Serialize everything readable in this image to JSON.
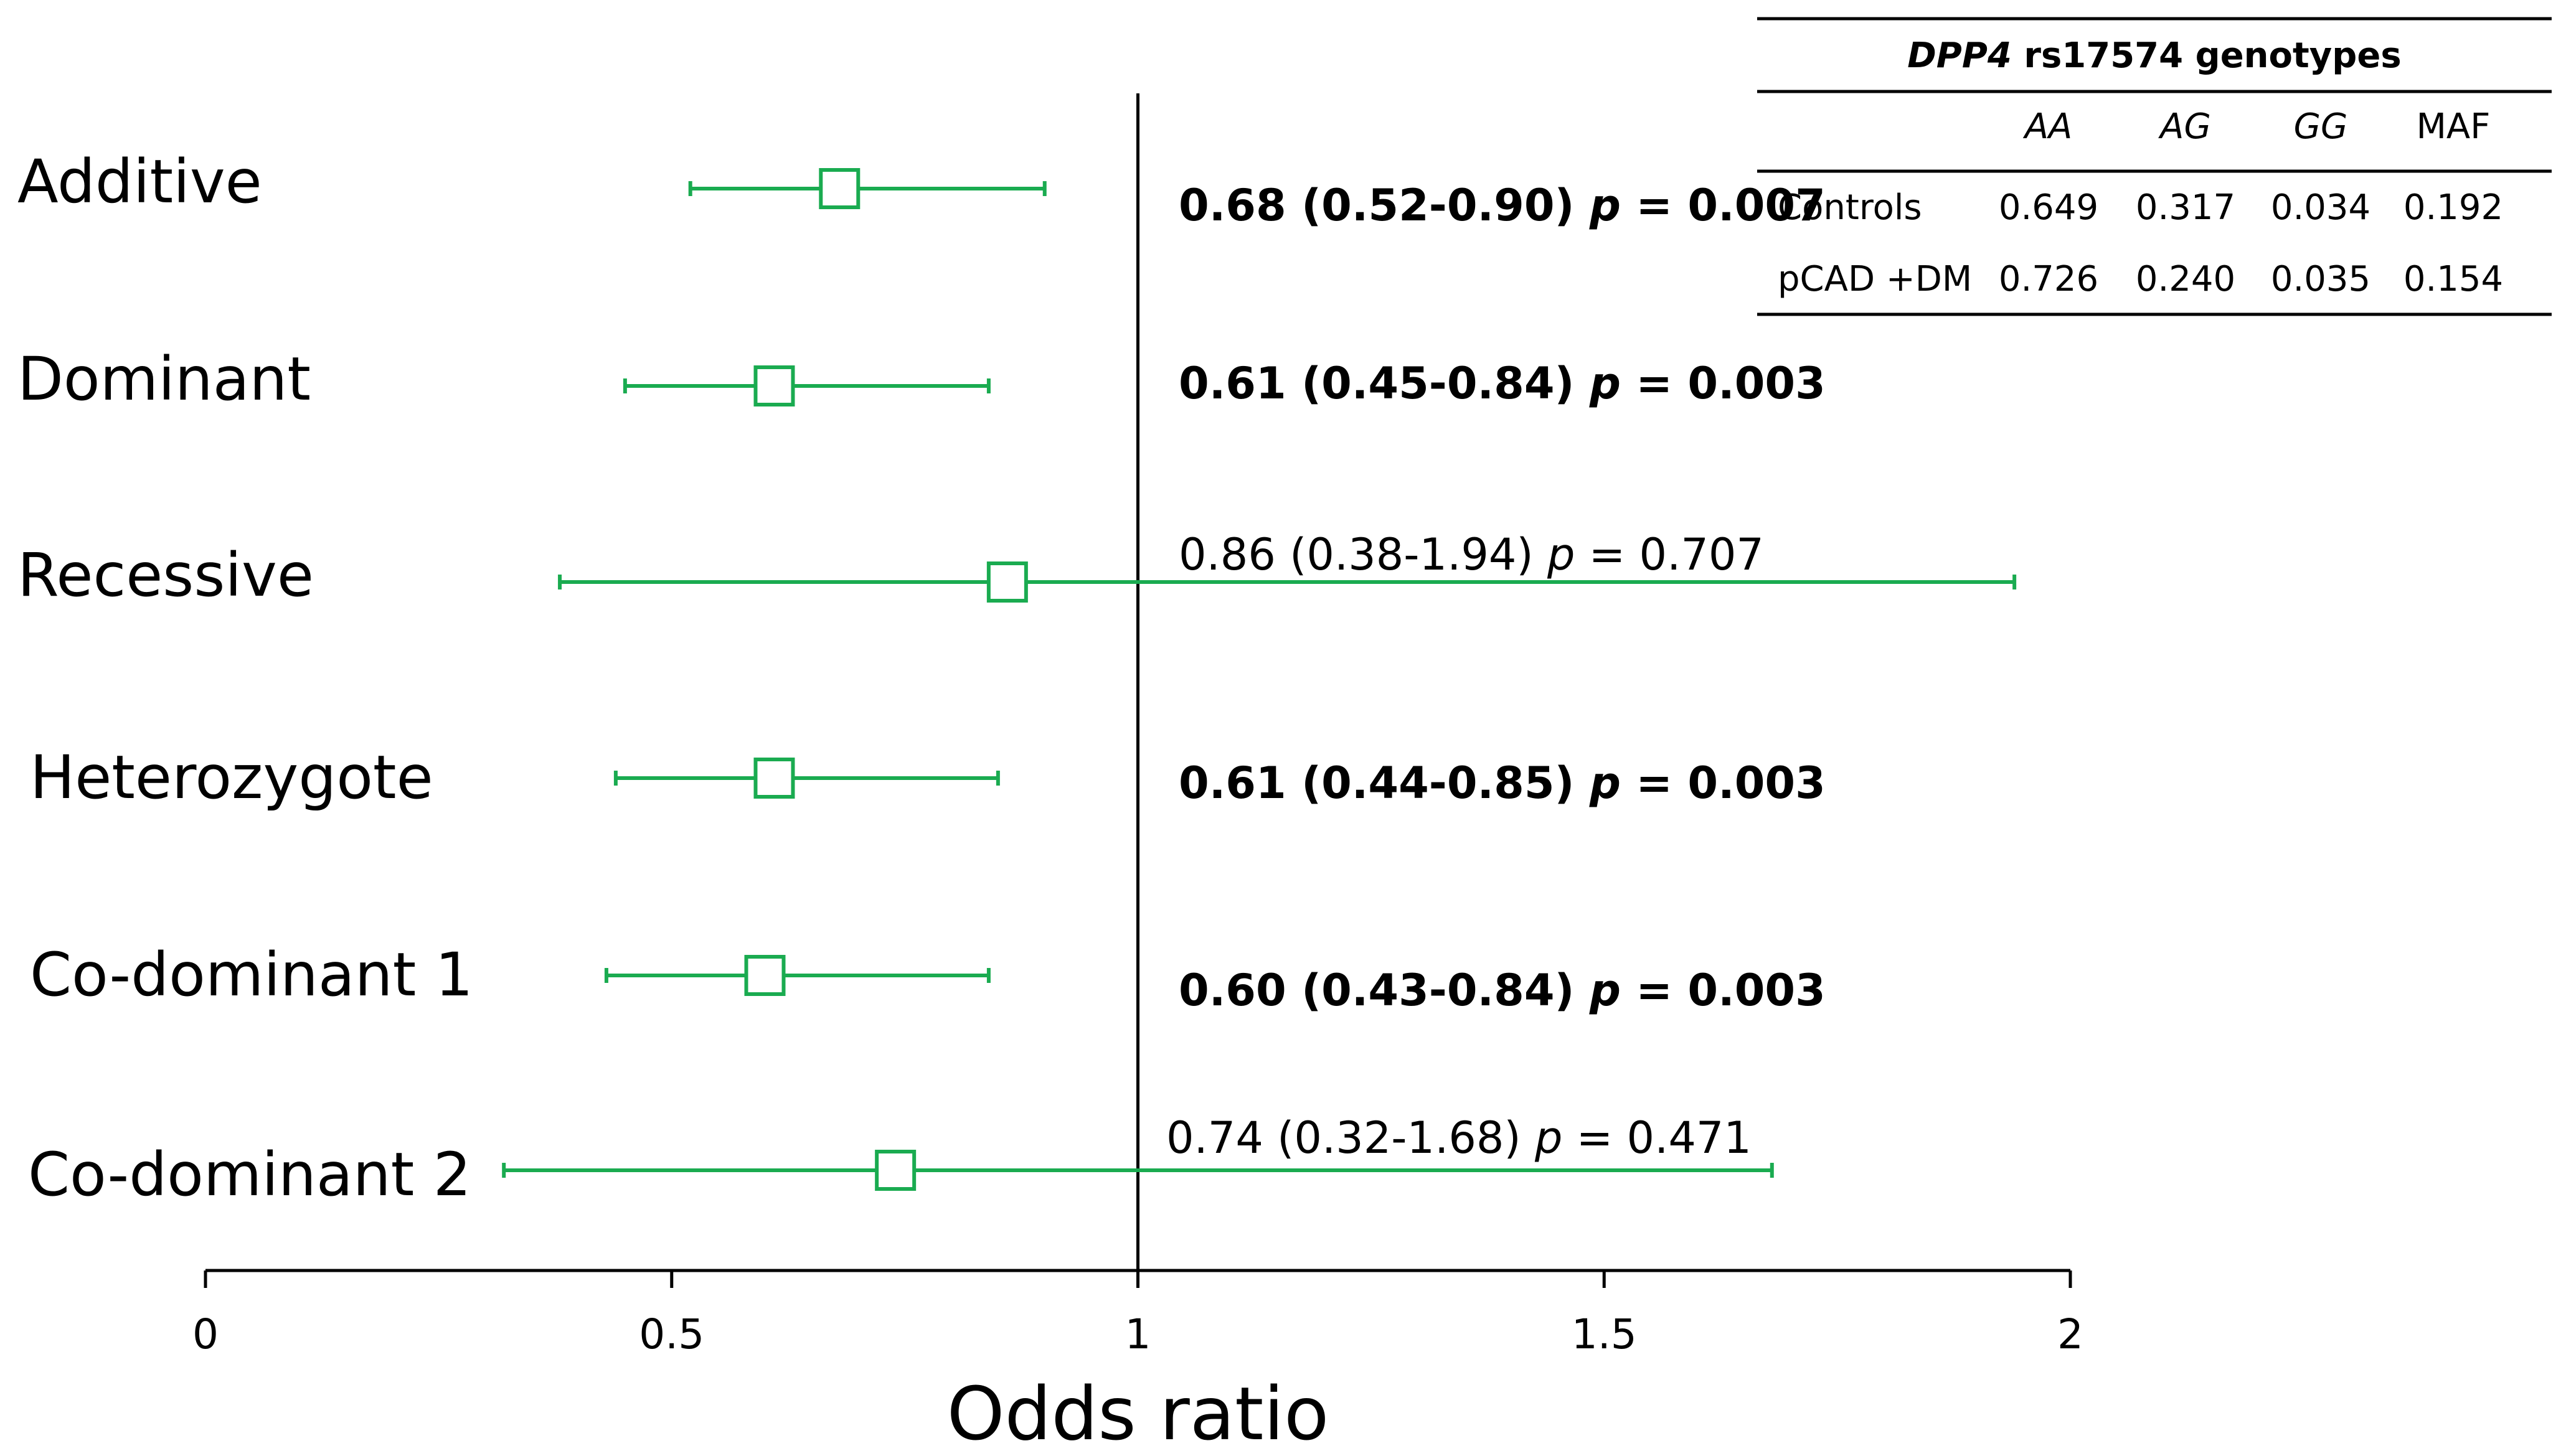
{
  "chart_data": {
    "type": "forest",
    "xlabel": "Odds ratio",
    "xlim": [
      0,
      2
    ],
    "xticks": [
      0,
      0.5,
      1,
      1.5,
      2
    ],
    "xtick_labels": [
      "0",
      "0.5",
      "1",
      "1.5",
      "2"
    ],
    "reference_line": 1,
    "marker_color": "#1aab50",
    "rows": [
      {
        "label": "Additive",
        "or": 0.68,
        "lower": 0.52,
        "upper": 0.9,
        "estimate_text": "0.68 (0.52-0.90)",
        "p_label": "p",
        "p_text": "= 0.007",
        "bold": true
      },
      {
        "label": "Dominant",
        "or": 0.61,
        "lower": 0.45,
        "upper": 0.84,
        "estimate_text": "0.61 (0.45-0.84)",
        "p_label": "p",
        "p_text": "= 0.003",
        "bold": true
      },
      {
        "label": "Recessive",
        "or": 0.86,
        "lower": 0.38,
        "upper": 1.94,
        "estimate_text": "0.86 (0.38-1.94)",
        "p_label": "p",
        "p_text": "= 0.707",
        "bold": false
      },
      {
        "label": "Heterozygote",
        "or": 0.61,
        "lower": 0.44,
        "upper": 0.85,
        "estimate_text": "0.61 (0.44-0.85)",
        "p_label": "p",
        "p_text": "= 0.003",
        "bold": true
      },
      {
        "label": "Co-dominant 1",
        "or": 0.6,
        "lower": 0.43,
        "upper": 0.84,
        "estimate_text": "0.60 (0.43-0.84)",
        "p_label": "p",
        "p_text": "= 0.003",
        "bold": true
      },
      {
        "label": "Co-dominant 2",
        "or": 0.74,
        "lower": 0.32,
        "upper": 1.68,
        "estimate_text": "0.74 (0.32-1.68)",
        "p_label": "p",
        "p_text": "= 0.471",
        "bold": false
      }
    ]
  },
  "genotype_table": {
    "title_gene": "DPP4",
    "title_rest": " rs17574 genotypes",
    "headers": [
      "",
      "AA",
      "AG",
      "GG",
      "MAF"
    ],
    "rows": [
      [
        "Controls",
        "0.649",
        "0.317",
        "0.034",
        "0.192"
      ],
      [
        "pCAD +DM",
        "0.726",
        "0.240",
        "0.035",
        "0.154"
      ]
    ]
  }
}
